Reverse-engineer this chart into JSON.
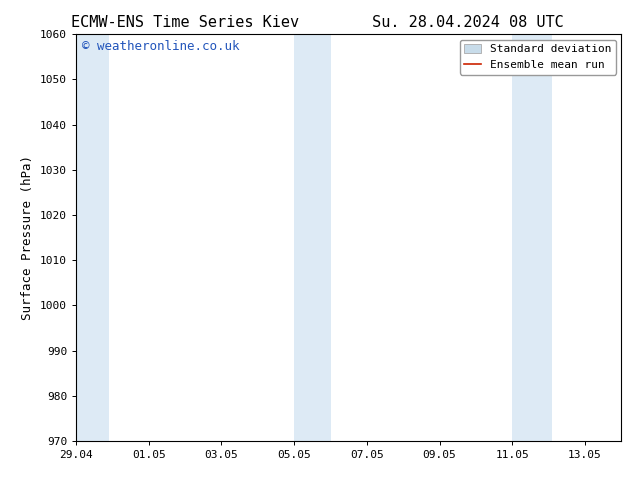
{
  "title_left": "ECMW-ENS Time Series Kiev",
  "title_right": "Su. 28.04.2024 08 UTC",
  "ylabel": "Surface Pressure (hPa)",
  "ylim": [
    970,
    1060
  ],
  "yticks": [
    970,
    980,
    990,
    1000,
    1010,
    1020,
    1030,
    1040,
    1050,
    1060
  ],
  "xtick_labels": [
    "29.04",
    "01.05",
    "03.05",
    "05.05",
    "07.05",
    "09.05",
    "11.05",
    "13.05"
  ],
  "xtick_positions": [
    0,
    2,
    4,
    6,
    8,
    10,
    12,
    14
  ],
  "xlim": [
    0,
    15
  ],
  "shaded_bands": [
    {
      "xstart": 0,
      "xend": 0.9,
      "color": "#ddeaf5"
    },
    {
      "xstart": 6,
      "xend": 7.0,
      "color": "#ddeaf5"
    },
    {
      "xstart": 12,
      "xend": 13.1,
      "color": "#ddeaf5"
    }
  ],
  "watermark_text": "© weatheronline.co.uk",
  "watermark_color": "#2255bb",
  "watermark_fontsize": 9,
  "legend_std_label": "Standard deviation",
  "legend_mean_label": "Ensemble mean run",
  "legend_std_color": "#c8dcea",
  "legend_std_edge": "#aaaaaa",
  "legend_mean_color": "#cc2200",
  "background_color": "#ffffff",
  "plot_bg_color": "#ffffff",
  "title_fontsize": 11,
  "axis_label_fontsize": 9,
  "tick_fontsize": 8,
  "legend_fontsize": 8,
  "spine_color": "#000000"
}
